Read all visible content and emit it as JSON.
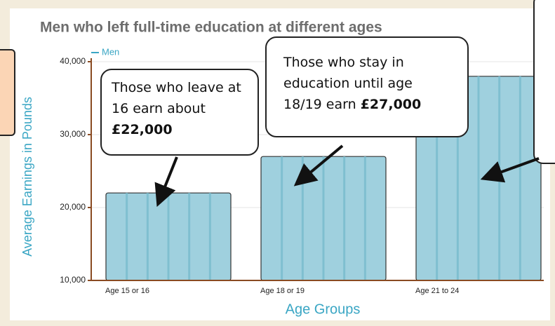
{
  "chart_data": {
    "type": "bar",
    "title": "Men who left full-time education at different ages",
    "x_label": "Age Groups",
    "y_label": "Average Earnings in Pounds",
    "categories": [
      "Age 15 or 16",
      "Age 18 or 19",
      "Age 21 to 24"
    ],
    "series": [
      {
        "name": "Men",
        "color": "#9fd0de",
        "values": [
          22000,
          27000,
          38000
        ]
      }
    ],
    "ylim": [
      10000,
      40000
    ],
    "yticks": [
      {
        "value": 10000,
        "label": "10,000"
      },
      {
        "value": 20000,
        "label": "20,000"
      },
      {
        "value": 30000,
        "label": "30,000"
      },
      {
        "value": 40000,
        "label": "40,000"
      }
    ],
    "grid": true,
    "annotations": [
      {
        "text": "Those who leave at 16 earn about",
        "bold": "£22,000"
      },
      {
        "text": "Those who stay in education until age 18/19 earn",
        "bold": "£27,000"
      }
    ]
  }
}
